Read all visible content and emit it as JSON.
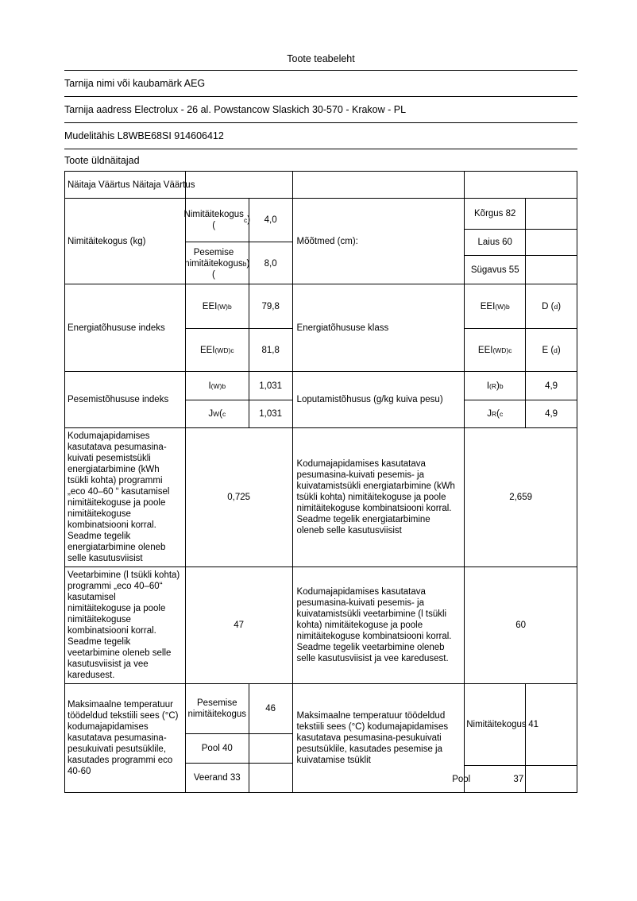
{
  "doc": {
    "title": "Toote teabeleht",
    "supplier_name": "Tarnija nimi või kaubamärk AEG",
    "supplier_address": "Tarnija aadress Electrolux - 26 al. Powstancow Slaskich 30-570 - Krakow - PL",
    "model": "Mudelitähis L8WBE68SI 914606412",
    "section_title": "Toote üldnäitajad"
  },
  "table": {
    "header": "Näitaja Väärtus Näitaja Väärtus",
    "r1": {
      "label": "Nimitäitekogus (kg)",
      "l1_name": "Nimitäitekogus<br>(<sup>c</sup>)",
      "l1_value": "4,0",
      "l2_name": "Pesemise<br>nimitäitekogus<br>(<sup>b</sup>)",
      "l2_value": "8,0",
      "label2": "Mõõtmed (cm):",
      "r1_name": "Kõrgus 82",
      "r2_name": "Laius 60",
      "r3_name": "Sügavus 55"
    },
    "r2": {
      "label": "Energiatõhususe indeks",
      "l1_name": "EEI<sub>(W)</sub><sup>b</sup>",
      "l1_value": "79,8",
      "l2_name": "EEI<sub>(WD)</sub> <sup>c</sup>",
      "l2_value": "81,8",
      "label2": "Energiatõhususe klass",
      "r1_name": "EEI<sub>(W)</sub><sup>b</sup>",
      "r1_value": "D (<sup>d</sup>)",
      "r2_name": "EEI<sub>(WD)</sub> <sup>c</sup>",
      "r2_value": "E (<sup>d</sup>)"
    },
    "r3": {
      "label": "Pesemistõhususe indeks",
      "l1_name": "I<sub>(W)</sub><sup>b</sup>",
      "l1_value": "1,031",
      "l2_name": "J<sub>W</sub>( <sup>c</sup>",
      "l2_value": "1,031",
      "label2": "Loputamistõhusus (g/kg kuiva pesu)",
      "r1_name": "I<sub>(R</sub>)<sup>b</sup>",
      "r1_value": "4,9",
      "r2_name": "J<sub>R</sub>( <sup>c</sup>",
      "r2_value": "4,9"
    },
    "r4": {
      "label": "Kodumajapidamises kasutatava pesumasina-kuivati pesemistsükli energiatarbimine (kWh tsükli kohta) programmi „eco 40–60 “ kasutamisel nimitäitekoguse ja poole nimitäitekoguse kombinatsiooni korral. Seadme tegelik energiatarbimine oleneb selle kasutusviisist",
      "value": "0,725",
      "label2": "Kodumajapidamises kasutatava pesumasina-kuivati pesemis- ja kuivatamistsükli energiatarbimine (kWh tsükli kohta) nimitäitekoguse ja poole nimitäitekoguse kombinatsiooni korral. Seadme tegelik energiatarbimine oleneb selle kasutusviisist",
      "value2": "2,659"
    },
    "r5": {
      "label": "Veetarbimine (l tsükli kohta) programmi „eco 40–60“ kasutamisel nimitäitekoguse ja poole nimitäitekoguse kombinatsiooni korral. Seadme tegelik veetarbimine oleneb selle kasutusviisist ja vee karedusest.",
      "value": "47",
      "label2": "Kodumajapidamises kasutatava pesumasina-kuivati pesemis- ja kuivatamistsükli veetarbimine (l tsükli kohta) nimitäitekoguse ja poole nimitäitekoguse kombinatsiooni korral. Seadme tegelik veetarbimine oleneb selle kasutusviisist ja vee karedusest.",
      "value2": "60"
    },
    "r6": {
      "label": "Maksimaalne temperatuur töödeldud tekstiili sees (°C) kodumajapidamises kasutatava pesumasina-pesukuivati pesutsüklile, kasutades programmi eco 40-60",
      "l1_name": "Pesemise nimitäitekogus",
      "l1_value": "46",
      "l2_name": "Pool 40",
      "l3_name": "Veerand 33",
      "label2": "Maksimaalne temperatuur töödeldud tekstiili sees (°C) kodumajapidamises kasutatava pesumasina-pesukuivati pesutsüklile, kasutades pesemise ja kuivatamise tsüklit",
      "r1_name": "Nimitäitekogus",
      "r1_value": "41",
      "r2_name": "Pool",
      "r2_value": "37"
    }
  }
}
